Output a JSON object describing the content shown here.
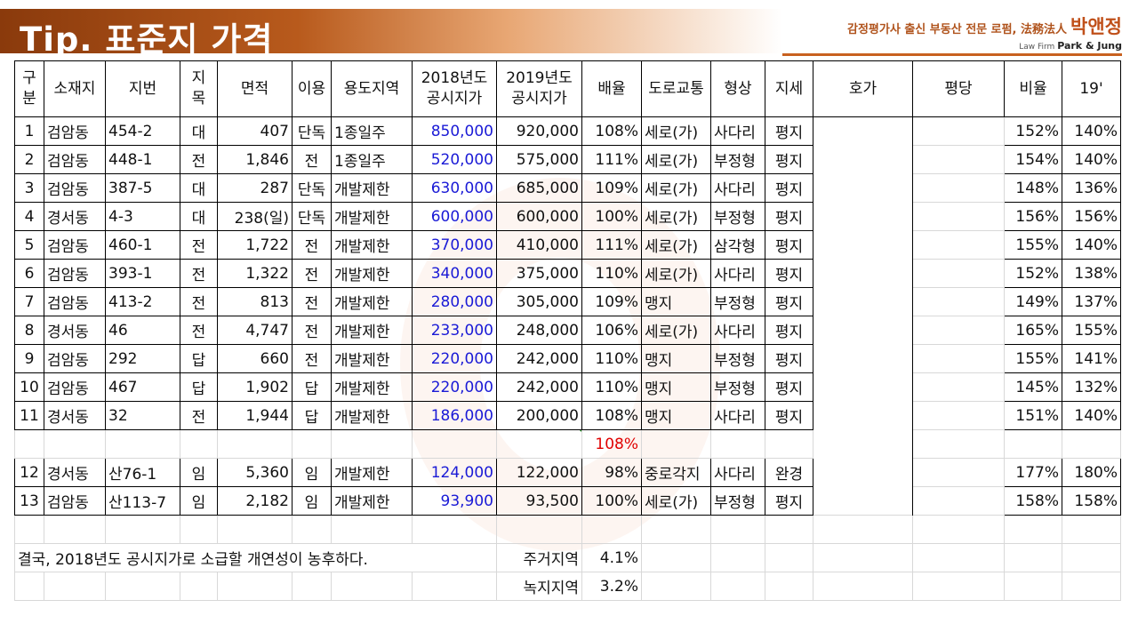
{
  "header": {
    "title": "Tip. 표준지 가격",
    "brand_line1": "감정평가사 출신 부동산 전문 로펌, 法務法人",
    "brand_name": "박앤정",
    "brand_line2_prefix": "Law Firm",
    "brand_line2_name": "Park & Jung"
  },
  "table": {
    "headers": {
      "gubun": "구\n분",
      "location": "소재지",
      "lot": "지번",
      "jimok": "지\n목",
      "area": "면적",
      "use": "이용",
      "zone": "용도지역",
      "p2018": "2018년도\n공시지가",
      "p2019": "2019년도\n공시지가",
      "ratio": "배율",
      "road": "도로교통",
      "shape": "형상",
      "terrain": "지세",
      "hoga": "호가",
      "pyeongdang": "평당",
      "bi": "비율",
      "y19": "19'"
    },
    "rows": [
      {
        "no": "1",
        "loc": "검암동",
        "lot": "454-2",
        "jimok": "대",
        "area": "407",
        "use": "단독",
        "zone": "1종일주",
        "p2018": "850,000",
        "p2019": "920,000",
        "ratio": "108%",
        "road": "세로(가)",
        "shape": "사다리",
        "terrain": "평지",
        "bi": "152%",
        "y19": "140%"
      },
      {
        "no": "2",
        "loc": "검암동",
        "lot": "448-1",
        "jimok": "전",
        "area": "1,846",
        "use": "전",
        "zone": "1종일주",
        "p2018": "520,000",
        "p2019": "575,000",
        "ratio": "111%",
        "road": "세로(가)",
        "shape": "부정형",
        "terrain": "평지",
        "bi": "154%",
        "y19": "140%"
      },
      {
        "no": "3",
        "loc": "검암동",
        "lot": "387-5",
        "jimok": "대",
        "area": "287",
        "use": "단독",
        "zone": "개발제한",
        "p2018": "630,000",
        "p2019": "685,000",
        "ratio": "109%",
        "road": "세로(가)",
        "shape": "사다리",
        "terrain": "평지",
        "bi": "148%",
        "y19": "136%"
      },
      {
        "no": "4",
        "loc": "경서동",
        "lot": "4-3",
        "jimok": "대",
        "area": "238(일)",
        "use": "단독",
        "zone": "개발제한",
        "p2018": "600,000",
        "p2019": "600,000",
        "ratio": "100%",
        "road": "세로(가)",
        "shape": "부정형",
        "terrain": "평지",
        "bi": "156%",
        "y19": "156%"
      },
      {
        "no": "5",
        "loc": "검암동",
        "lot": "460-1",
        "jimok": "전",
        "area": "1,722",
        "use": "전",
        "zone": "개발제한",
        "p2018": "370,000",
        "p2019": "410,000",
        "ratio": "111%",
        "road": "세로(가)",
        "shape": "삼각형",
        "terrain": "평지",
        "bi": "155%",
        "y19": "140%"
      },
      {
        "no": "6",
        "loc": "검암동",
        "lot": "393-1",
        "jimok": "전",
        "area": "1,322",
        "use": "전",
        "zone": "개발제한",
        "p2018": "340,000",
        "p2019": "375,000",
        "ratio": "110%",
        "road": "세로(가)",
        "shape": "사다리",
        "terrain": "평지",
        "bi": "152%",
        "y19": "138%"
      },
      {
        "no": "7",
        "loc": "검암동",
        "lot": "413-2",
        "jimok": "전",
        "area": "813",
        "use": "전",
        "zone": "개발제한",
        "p2018": "280,000",
        "p2019": "305,000",
        "ratio": "109%",
        "road": "맹지",
        "shape": "부정형",
        "terrain": "평지",
        "bi": "149%",
        "y19": "137%"
      },
      {
        "no": "8",
        "loc": "경서동",
        "lot": "46",
        "jimok": "전",
        "area": "4,747",
        "use": "전",
        "zone": "개발제한",
        "p2018": "233,000",
        "p2019": "248,000",
        "ratio": "106%",
        "road": "세로(가)",
        "shape": "사다리",
        "terrain": "평지",
        "bi": "165%",
        "y19": "155%"
      },
      {
        "no": "9",
        "loc": "검암동",
        "lot": "292",
        "jimok": "답",
        "area": "660",
        "use": "전",
        "zone": "개발제한",
        "p2018": "220,000",
        "p2019": "242,000",
        "ratio": "110%",
        "road": "맹지",
        "shape": "부정형",
        "terrain": "평지",
        "bi": "155%",
        "y19": "141%"
      },
      {
        "no": "10",
        "loc": "검암동",
        "lot": "467",
        "jimok": "답",
        "area": "1,902",
        "use": "답",
        "zone": "개발제한",
        "p2018": "220,000",
        "p2019": "242,000",
        "ratio": "110%",
        "road": "맹지",
        "shape": "부정형",
        "terrain": "평지",
        "bi": "145%",
        "y19": "132%"
      },
      {
        "no": "11",
        "loc": "경서동",
        "lot": "32",
        "jimok": "전",
        "area": "1,944",
        "use": "답",
        "zone": "개발제한",
        "p2018": "186,000",
        "p2019": "200,000",
        "ratio": "108%",
        "road": "맹지",
        "shape": "사다리",
        "terrain": "평지",
        "bi": "151%",
        "y19": "140%"
      }
    ],
    "avg_ratio": "108%",
    "rows_b": [
      {
        "no": "12",
        "loc": "경서동",
        "lot": "산76-1",
        "jimok": "임",
        "area": "5,360",
        "use": "임",
        "zone": "개발제한",
        "p2018": "124,000",
        "p2019": "122,000",
        "ratio": "98%",
        "road": "중로각지",
        "shape": "사다리",
        "terrain": "완경",
        "bi": "177%",
        "y19": "180%"
      },
      {
        "no": "13",
        "loc": "검암동",
        "lot": "산113-7",
        "jimok": "임",
        "area": "2,182",
        "use": "임",
        "zone": "개발제한",
        "p2018": "93,900",
        "p2019": "93,500",
        "ratio": "100%",
        "road": "세로(가)",
        "shape": "부정형",
        "terrain": "평지",
        "bi": "158%",
        "y19": "158%"
      }
    ]
  },
  "footer": {
    "conclusion": "결국, 2018년도 공시지가로 소급할 개연성이 농후하다.",
    "residential_label": "주거지역",
    "residential_value": "4.1%",
    "green_label": "녹지지역",
    "green_value": "3.2%"
  },
  "colors": {
    "banner_dark": "#8a3a0c",
    "price2018_blue": "#1a1ad6",
    "avg_red": "#e00000",
    "brand_orange": "#c0501a"
  }
}
